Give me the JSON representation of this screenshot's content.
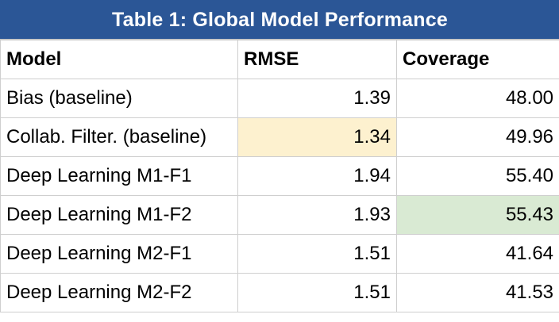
{
  "title": "Table 1: Global Model Performance",
  "columns": [
    "Model",
    "RMSE",
    "Coverage"
  ],
  "rows": [
    {
      "model": "Bias (baseline)",
      "rmse": "1.39",
      "coverage": "48.00"
    },
    {
      "model": "Collab. Filter. (baseline)",
      "rmse": "1.34",
      "coverage": "49.96"
    },
    {
      "model": "Deep Learning M1-F1",
      "rmse": "1.94",
      "coverage": "55.40"
    },
    {
      "model": "Deep Learning M1-F2",
      "rmse": "1.93",
      "coverage": "55.43"
    },
    {
      "model": "Deep Learning M2-F1",
      "rmse": "1.51",
      "coverage": "41.64"
    },
    {
      "model": "Deep Learning M2-F2",
      "rmse": "1.51",
      "coverage": "41.53"
    }
  ],
  "highlights": {
    "best_rmse_color": "#fdf1cf",
    "best_coverage_color": "#d9ead3",
    "title_bar_color": "#2b5696"
  }
}
